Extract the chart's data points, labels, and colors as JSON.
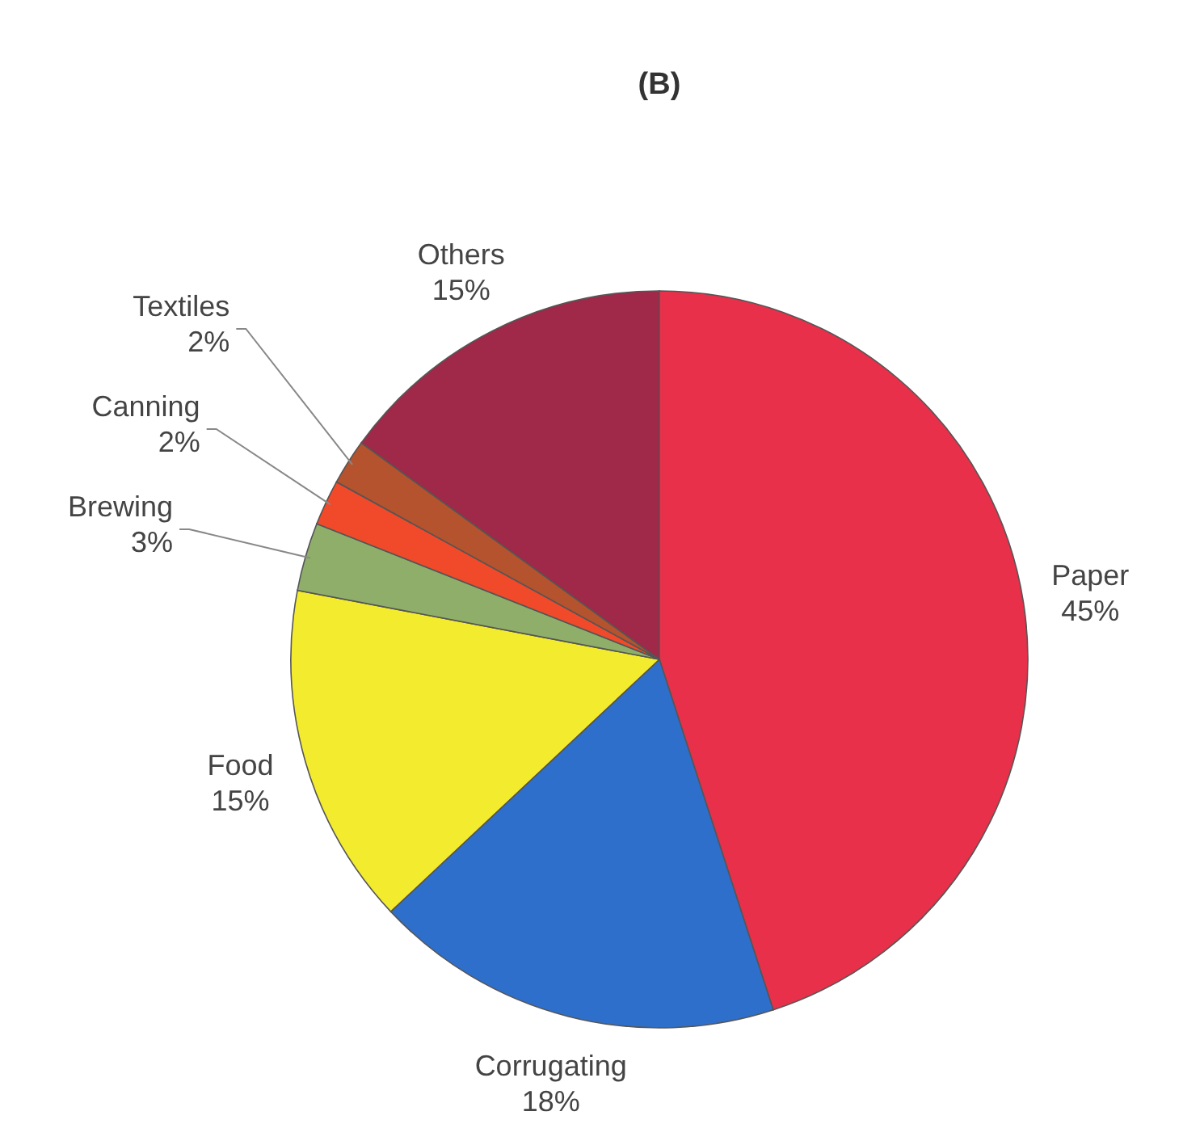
{
  "chart_data": {
    "type": "pie",
    "title": "(B)",
    "categories": [
      "Paper",
      "Corrugating",
      "Food",
      "Brewing",
      "Canning",
      "Textiles",
      "Others"
    ],
    "values": [
      45,
      18,
      15,
      3,
      2,
      2,
      15
    ],
    "colors": [
      "#e8304a",
      "#2f6fcc",
      "#f3ec2e",
      "#8fae6a",
      "#f04a2a",
      "#b5532e",
      "#a02848"
    ],
    "value_labels": [
      "45%",
      "18%",
      "15%",
      "3%",
      "2%",
      "2%",
      "15%"
    ]
  }
}
